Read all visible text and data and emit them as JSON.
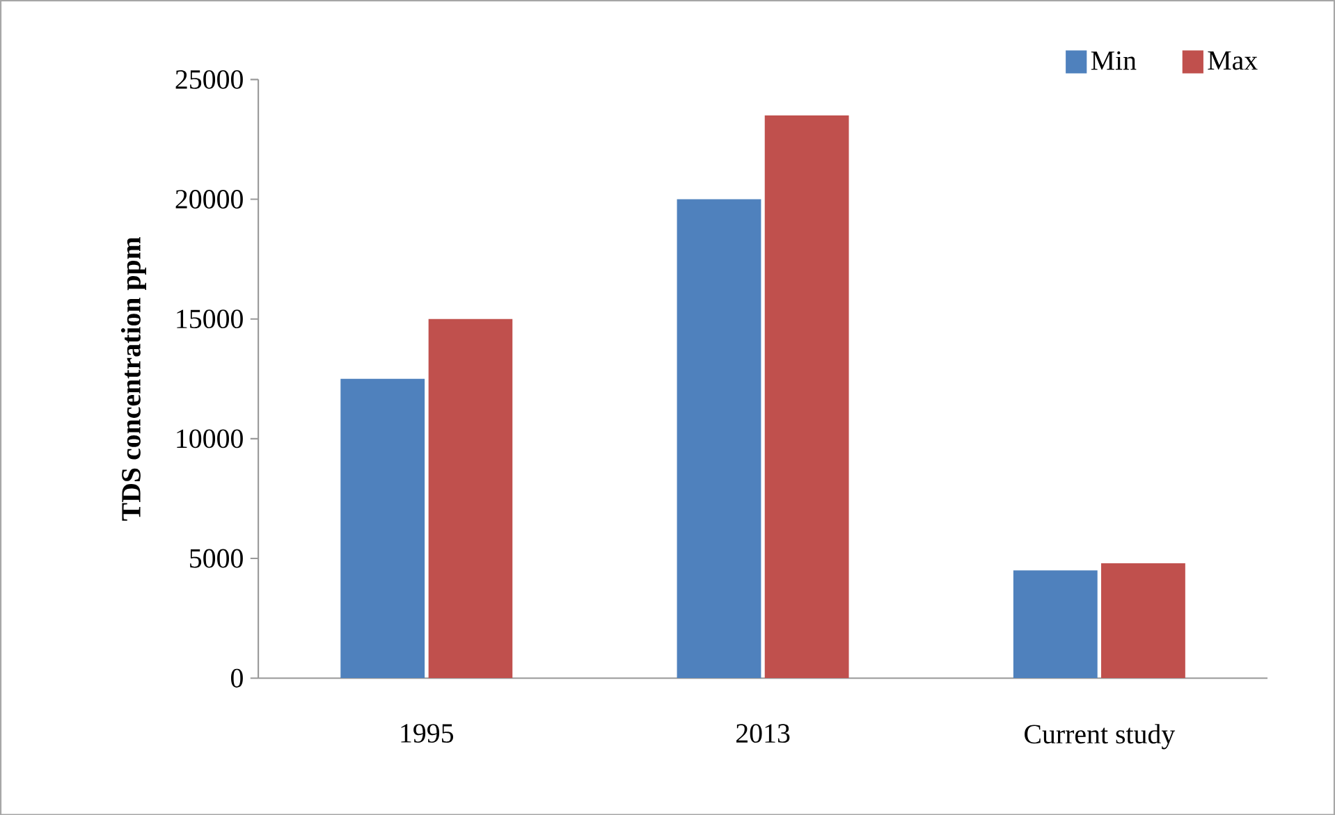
{
  "chart_data": {
    "type": "bar",
    "ylabel": "**TDS concentration ppm**",
    "categories": [
      "1995",
      "2013",
      "Current study"
    ],
    "series": [
      {
        "name": "Min",
        "color": "#4f81bd",
        "values": [
          12500,
          20000,
          4500
        ]
      },
      {
        "name": "Max",
        "color": "#c0504d",
        "values": [
          15000,
          23500,
          4800
        ]
      }
    ],
    "ylim": [
      0,
      25000
    ],
    "yticks": [
      0,
      5000,
      10000,
      15000,
      20000,
      25000
    ],
    "grid": false,
    "legend": "top right"
  }
}
